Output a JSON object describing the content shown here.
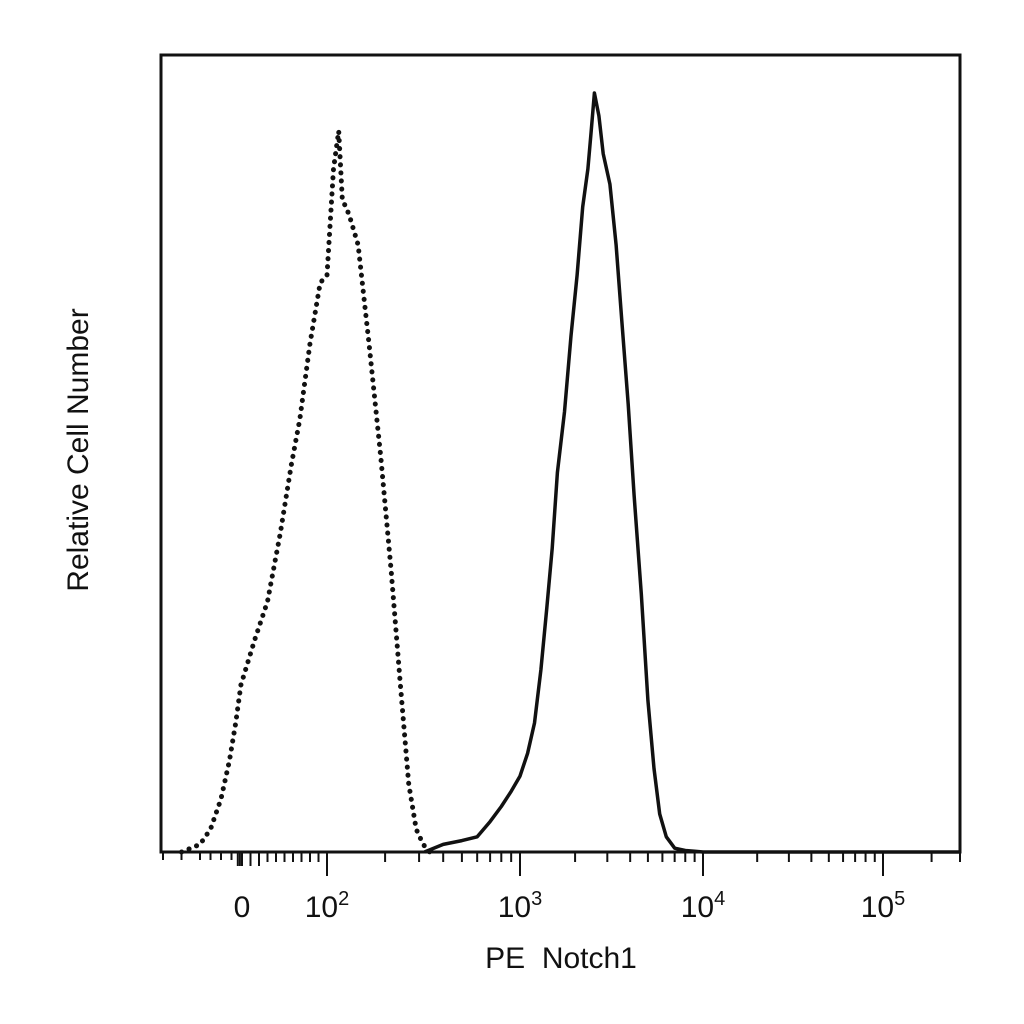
{
  "chart_data": {
    "type": "line",
    "xlabel": "PE  Notch1",
    "ylabel": "Relative Cell Number",
    "x_scale": "biexponential",
    "x_ticks": [
      {
        "label": "0",
        "value": 0,
        "sup": ""
      },
      {
        "label": "10",
        "value": 100,
        "sup": "2"
      },
      {
        "label": "10",
        "value": 1000,
        "sup": "3"
      },
      {
        "label": "10",
        "value": 10000,
        "sup": "4"
      },
      {
        "label": "10",
        "value": 100000,
        "sup": "5"
      }
    ],
    "y_ticks_shown": false,
    "grid": false,
    "legend": "none",
    "series": [
      {
        "style": "dotted",
        "color": "#111111",
        "points": [
          [
            -250,
            0.0
          ],
          [
            -200,
            0.01
          ],
          [
            -150,
            0.03
          ],
          [
            -100,
            0.07
          ],
          [
            -60,
            0.12
          ],
          [
            -30,
            0.17
          ],
          [
            -5,
            0.22
          ],
          [
            15,
            0.28
          ],
          [
            30,
            0.33
          ],
          [
            45,
            0.42
          ],
          [
            58,
            0.51
          ],
          [
            68,
            0.57
          ],
          [
            80,
            0.67
          ],
          [
            92,
            0.75
          ],
          [
            100,
            0.76
          ],
          [
            108,
            0.9
          ],
          [
            115,
            0.95
          ],
          [
            120,
            0.86
          ],
          [
            130,
            0.84
          ],
          [
            145,
            0.8
          ],
          [
            165,
            0.67
          ],
          [
            190,
            0.52
          ],
          [
            215,
            0.37
          ],
          [
            240,
            0.22
          ],
          [
            265,
            0.09
          ],
          [
            290,
            0.03
          ],
          [
            315,
            0.01
          ],
          [
            340,
            0.0
          ]
        ]
      },
      {
        "style": "solid",
        "color": "#111111",
        "points": [
          [
            320,
            0.0
          ],
          [
            400,
            0.01
          ],
          [
            500,
            0.015
          ],
          [
            600,
            0.02
          ],
          [
            700,
            0.04
          ],
          [
            800,
            0.06
          ],
          [
            900,
            0.08
          ],
          [
            1000,
            0.1
          ],
          [
            1100,
            0.13
          ],
          [
            1200,
            0.17
          ],
          [
            1300,
            0.24
          ],
          [
            1400,
            0.32
          ],
          [
            1500,
            0.4
          ],
          [
            1600,
            0.5
          ],
          [
            1750,
            0.58
          ],
          [
            1900,
            0.68
          ],
          [
            2050,
            0.76
          ],
          [
            2200,
            0.85
          ],
          [
            2350,
            0.9
          ],
          [
            2450,
            0.95
          ],
          [
            2550,
            1.0
          ],
          [
            2700,
            0.97
          ],
          [
            2850,
            0.92
          ],
          [
            3100,
            0.88
          ],
          [
            3350,
            0.8
          ],
          [
            3600,
            0.7
          ],
          [
            3900,
            0.59
          ],
          [
            4200,
            0.47
          ],
          [
            4600,
            0.34
          ],
          [
            5000,
            0.2
          ],
          [
            5400,
            0.11
          ],
          [
            5800,
            0.05
          ],
          [
            6300,
            0.02
          ],
          [
            7000,
            0.005
          ],
          [
            8000,
            0.002
          ],
          [
            9000,
            0.001
          ],
          [
            10000,
            0.0
          ],
          [
            300000,
            0.0
          ]
        ]
      }
    ]
  }
}
